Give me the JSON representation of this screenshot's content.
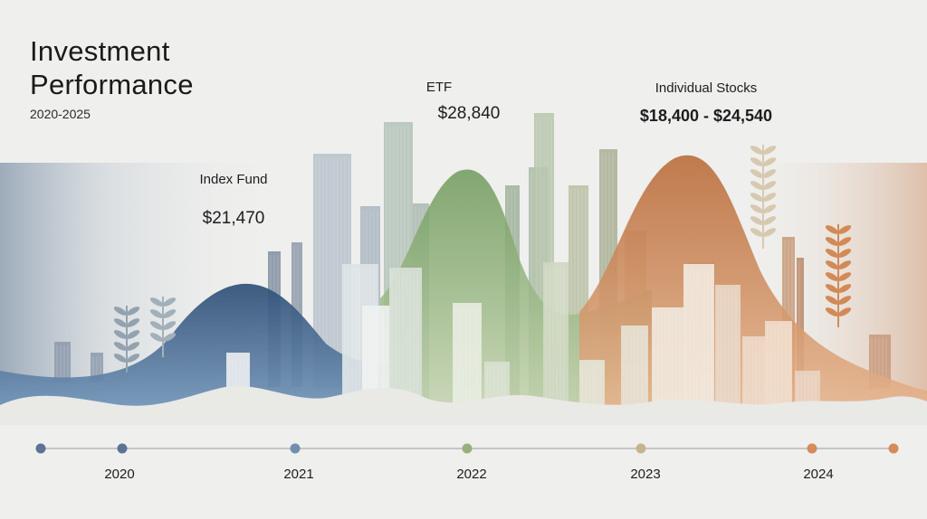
{
  "chart_data": {
    "type": "area",
    "title": "Investment Performance",
    "subtitle": "2020-2025",
    "timeline": [
      "2020",
      "2021",
      "2022",
      "2023",
      "2024"
    ],
    "series": [
      {
        "name": "Index Fund",
        "value_label": "$21,470",
        "peak_year": 2020.9,
        "color": "#3f6d97"
      },
      {
        "name": "ETF",
        "value_label": "$28,840",
        "peak_year": 2022.0,
        "color": "#7fa36c"
      },
      {
        "name": "Individual Stocks",
        "value_label": "$18,400 - $24,540",
        "peak_year": 2023.2,
        "color": "#c8804c"
      }
    ],
    "colors": {
      "background": "#efefed",
      "timeline_line": "#b9b9b9",
      "dot_2020": "#5a7496",
      "dot_2021": "#6f8faa",
      "dot_2022": "#97b07c",
      "dot_2023": "#c5b58f",
      "dot_2024": "#d78a5a"
    }
  }
}
